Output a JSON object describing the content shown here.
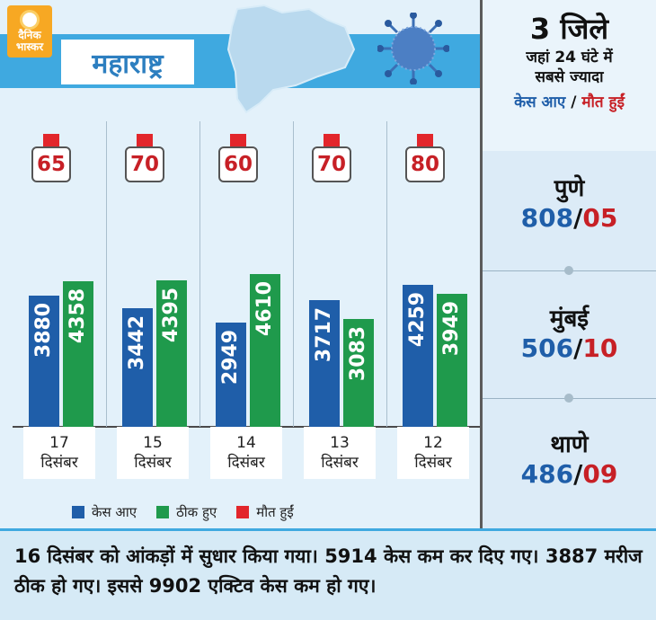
{
  "brand": {
    "logo_text": "दैनिक भास्कर"
  },
  "header": {
    "title": "महाराष्ट्र"
  },
  "colors": {
    "cases": "#1f5ea9",
    "recovered": "#1f9a4c",
    "deaths": "#e2262b",
    "accent": "#3fa9e0",
    "death_text": "#c72026"
  },
  "chart_data": {
    "type": "bar",
    "categories": [
      "17 दिसंबर",
      "15 दिसंबर",
      "14 दिसंबर",
      "13 दिसंबर",
      "12 दिसंबर"
    ],
    "category_lines": [
      [
        "17",
        "दिसंबर"
      ],
      [
        "15",
        "दिसंबर"
      ],
      [
        "14",
        "दिसंबर"
      ],
      [
        "13",
        "दिसंबर"
      ],
      [
        "12",
        "दिसंबर"
      ]
    ],
    "series": [
      {
        "name": "केस आए",
        "color": "#1f5ea9",
        "values": [
          3880,
          3442,
          2949,
          3717,
          4259
        ]
      },
      {
        "name": "ठीक हुए",
        "color": "#1f9a4c",
        "values": [
          4358,
          4395,
          4610,
          3083,
          3949
        ]
      },
      {
        "name": "मौत हुईं",
        "color": "#e2262b",
        "values": [
          65,
          70,
          60,
          70,
          80
        ]
      }
    ],
    "legend": [
      "केस आए",
      "ठीक हुए",
      "मौत हुईं"
    ]
  },
  "sidebar": {
    "title_big": "3 जिले",
    "title_line1": "जहां 24 घंटे में",
    "title_line2": "सबसे ज्यादा",
    "legend_cases": "केस आए",
    "legend_slash": " / ",
    "legend_deaths": "मौत हुईं",
    "districts": [
      {
        "name": "पुणे",
        "cases": "808",
        "deaths": "05"
      },
      {
        "name": "मुंबई",
        "cases": "506",
        "deaths": "10"
      },
      {
        "name": "थाणे",
        "cases": "486",
        "deaths": "09"
      }
    ]
  },
  "footer": {
    "text": "16 दिसंबर को आंकड़ों में सुधार किया गया। 5914 केस कम कर दिए गए। 3887 मरीज ठीक हो गए। इससे 9902 एक्टिव केस कम हो गए।"
  }
}
